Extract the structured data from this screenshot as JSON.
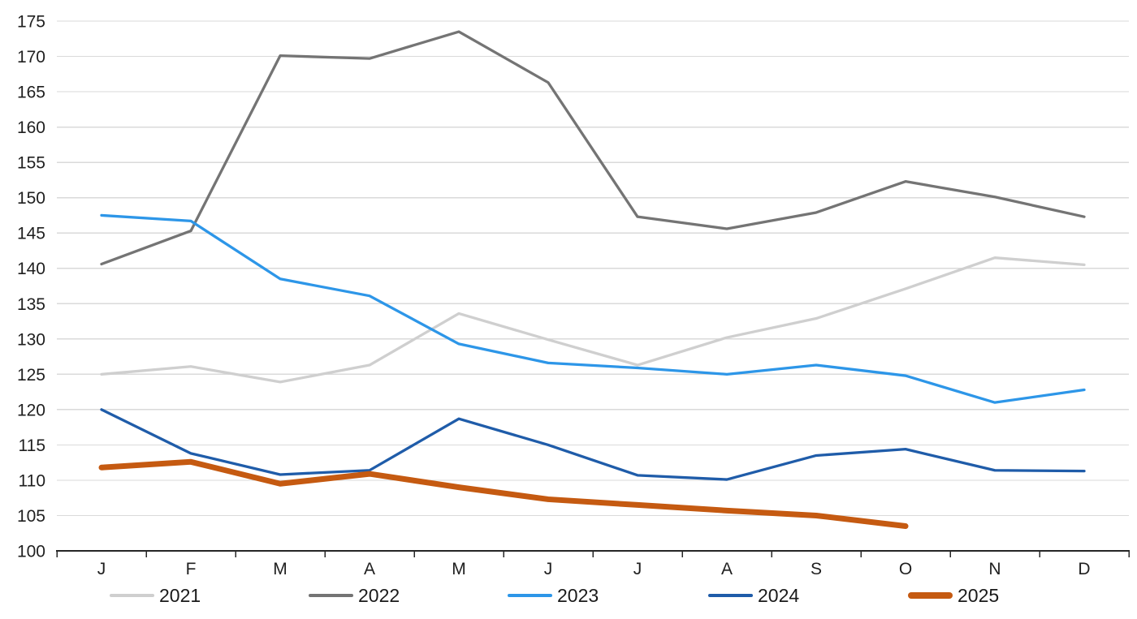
{
  "chart_data": {
    "type": "line",
    "title": "",
    "xlabel": "",
    "ylabel": "",
    "x_labels": [
      "J",
      "F",
      "M",
      "A",
      "M",
      "J",
      "J",
      "A",
      "S",
      "O",
      "N",
      "D"
    ],
    "y_ticks": [
      "100",
      "105",
      "110",
      "115",
      "120",
      "125",
      "130",
      "135",
      "140",
      "145",
      "150",
      "155",
      "160",
      "165",
      "170",
      "175"
    ],
    "ylim": [
      100,
      175
    ],
    "ytick_step": 5,
    "grid": "horizontal",
    "legend_position": "bottom",
    "series": [
      {
        "name": "2021",
        "color": "#CFCFCF",
        "width": 3.3,
        "values": [
          125.0,
          126.1,
          123.9,
          126.3,
          133.6,
          129.9,
          126.3,
          130.2,
          132.9,
          137.1,
          141.5,
          140.5
        ]
      },
      {
        "name": "2022",
        "color": "#747474",
        "width": 3.3,
        "values": [
          140.6,
          145.3,
          170.1,
          169.7,
          173.5,
          166.3,
          147.3,
          145.6,
          147.9,
          152.3,
          150.1,
          147.3
        ]
      },
      {
        "name": "2023",
        "color": "#2D96E8",
        "width": 3.3,
        "values": [
          147.5,
          146.7,
          138.5,
          136.1,
          129.3,
          126.6,
          125.9,
          125.0,
          126.3,
          124.8,
          121.0,
          122.8
        ]
      },
      {
        "name": "2024",
        "color": "#1F5CA9",
        "width": 3.3,
        "values": [
          120.0,
          113.8,
          110.8,
          111.4,
          118.7,
          115.0,
          110.7,
          110.1,
          113.5,
          114.4,
          111.4,
          111.3
        ]
      },
      {
        "name": "2025",
        "color": "#C55A11",
        "width": 7,
        "values": [
          111.8,
          112.6,
          109.5,
          110.9,
          109.0,
          107.3,
          106.5,
          105.7,
          105.0,
          103.5,
          null,
          null
        ]
      }
    ]
  },
  "style_colors": {
    "gridline": "#DADADA",
    "axis": "#262626",
    "tick_text": "#1f1f1f",
    "legend_text": "#1a1a1a"
  }
}
